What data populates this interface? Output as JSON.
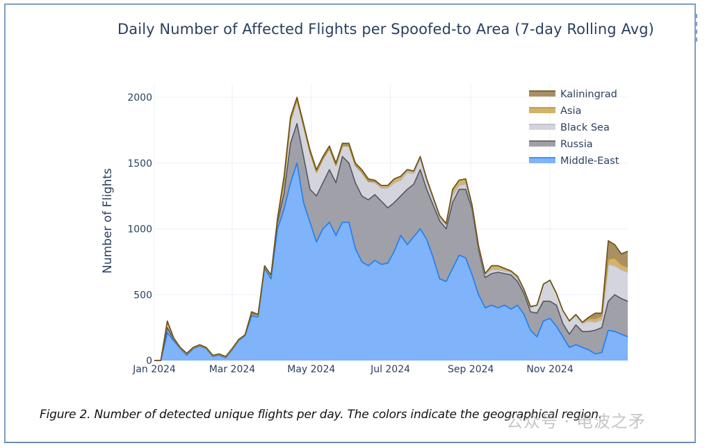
{
  "caption": "Figure 2. Number of detected unique flights per day. The colors indicate the geographical region.",
  "watermark": "公众号 · 电波之矛",
  "chart_data": {
    "type": "area",
    "stacked": true,
    "title": "Daily Number of Affected Flights per Spoofed-to Area (7-day Rolling Avg)",
    "xlabel": "",
    "ylabel": "Number of Flights",
    "ylim": [
      0,
      2100
    ],
    "yticks": [
      0,
      500,
      1000,
      1500,
      2000
    ],
    "xticks": [
      {
        "label": "Jan 2024",
        "day": 0
      },
      {
        "label": "Mar 2024",
        "day": 60
      },
      {
        "label": "May 2024",
        "day": 121
      },
      {
        "label": "Jul 2024",
        "day": 182
      },
      {
        "label": "Sep 2024",
        "day": 244
      },
      {
        "label": "Nov 2024",
        "day": 305
      }
    ],
    "xlim_days": [
      0,
      365
    ],
    "grid": true,
    "legend_position": "top-right",
    "x_days": [
      0,
      5,
      10,
      15,
      20,
      25,
      30,
      35,
      40,
      45,
      50,
      55,
      60,
      65,
      70,
      75,
      80,
      85,
      90,
      95,
      100,
      105,
      110,
      115,
      120,
      125,
      130,
      135,
      140,
      145,
      150,
      155,
      160,
      165,
      170,
      175,
      180,
      185,
      190,
      195,
      200,
      205,
      210,
      215,
      220,
      225,
      230,
      235,
      240,
      245,
      250,
      255,
      260,
      265,
      270,
      275,
      280,
      285,
      290,
      295,
      300,
      305,
      310,
      315,
      320,
      325,
      330,
      335,
      340,
      345,
      350,
      355,
      360,
      365
    ],
    "series": [
      {
        "name": "Middle-East",
        "fill": "#7fb3fa",
        "line": "#1e7ef0",
        "values": [
          0,
          0,
          210,
          150,
          90,
          40,
          90,
          110,
          90,
          30,
          40,
          20,
          80,
          150,
          190,
          340,
          330,
          700,
          620,
          1000,
          1150,
          1350,
          1500,
          1200,
          1050,
          900,
          1000,
          1050,
          950,
          1050,
          1050,
          850,
          750,
          720,
          760,
          730,
          740,
          830,
          950,
          880,
          940,
          1000,
          920,
          780,
          620,
          600,
          700,
          800,
          780,
          650,
          500,
          400,
          420,
          400,
          420,
          390,
          420,
          350,
          230,
          180,
          300,
          320,
          260,
          180,
          100,
          120,
          100,
          80,
          50,
          60,
          230,
          220,
          200,
          180
        ]
      },
      {
        "name": "Russia",
        "fill": "#a0a0a8",
        "line": "#55555f",
        "values": [
          0,
          0,
          40,
          10,
          5,
          10,
          5,
          5,
          5,
          5,
          5,
          5,
          5,
          5,
          5,
          20,
          15,
          15,
          25,
          50,
          120,
          300,
          300,
          350,
          250,
          350,
          350,
          400,
          400,
          500,
          450,
          500,
          500,
          500,
          500,
          480,
          420,
          370,
          300,
          420,
          400,
          450,
          380,
          400,
          440,
          400,
          500,
          500,
          520,
          500,
          340,
          230,
          240,
          270,
          240,
          260,
          180,
          160,
          140,
          180,
          150,
          130,
          160,
          100,
          100,
          150,
          120,
          140,
          180,
          190,
          220,
          280,
          270,
          270
        ]
      },
      {
        "name": "Black Sea",
        "fill": "#d4d4dc",
        "line": "#b8b8c2",
        "values": [
          0,
          0,
          40,
          5,
          0,
          0,
          0,
          0,
          0,
          0,
          0,
          0,
          0,
          0,
          0,
          5,
          0,
          0,
          0,
          25,
          80,
          170,
          180,
          230,
          280,
          180,
          180,
          160,
          130,
          80,
          130,
          130,
          180,
          140,
          90,
          100,
          150,
          150,
          120,
          130,
          80,
          80,
          60,
          40,
          20,
          30,
          50,
          30,
          40,
          20,
          20,
          20,
          30,
          20,
          20,
          20,
          20,
          20,
          30,
          60,
          130,
          160,
          90,
          100,
          100,
          70,
          60,
          80,
          60,
          60,
          280,
          220,
          220,
          220
        ]
      },
      {
        "name": "Asia",
        "fill": "#d2b36a",
        "line": "#b5923a",
        "values": [
          0,
          0,
          0,
          0,
          0,
          0,
          0,
          0,
          0,
          0,
          0,
          0,
          0,
          0,
          0,
          0,
          0,
          0,
          0,
          0,
          0,
          0,
          0,
          0,
          0,
          0,
          0,
          0,
          0,
          0,
          0,
          0,
          0,
          0,
          10,
          20,
          20,
          30,
          30,
          20,
          20,
          20,
          20,
          20,
          20,
          10,
          50,
          40,
          40,
          10,
          10,
          10,
          30,
          30,
          20,
          10,
          20,
          10,
          10,
          0,
          0,
          0,
          0,
          0,
          0,
          10,
          10,
          20,
          30,
          30,
          40,
          60,
          40,
          40
        ]
      },
      {
        "name": "Kaliningrad",
        "fill": "#a89064",
        "line": "#6b4f12",
        "values": [
          0,
          0,
          10,
          5,
          5,
          5,
          5,
          5,
          5,
          5,
          5,
          5,
          5,
          5,
          0,
          5,
          5,
          5,
          5,
          5,
          50,
          30,
          20,
          20,
          20,
          20,
          20,
          20,
          20,
          20,
          20,
          20,
          20,
          20,
          10,
          0,
          0,
          0,
          0,
          0,
          0,
          0,
          0,
          0,
          0,
          0,
          0,
          0,
          0,
          0,
          0,
          0,
          0,
          0,
          0,
          0,
          0,
          0,
          0,
          0,
          0,
          0,
          0,
          0,
          0,
          0,
          0,
          10,
          40,
          20,
          140,
          100,
          80,
          120
        ]
      }
    ],
    "legend_order": [
      "Kaliningrad",
      "Asia",
      "Black Sea",
      "Russia",
      "Middle-East"
    ]
  }
}
